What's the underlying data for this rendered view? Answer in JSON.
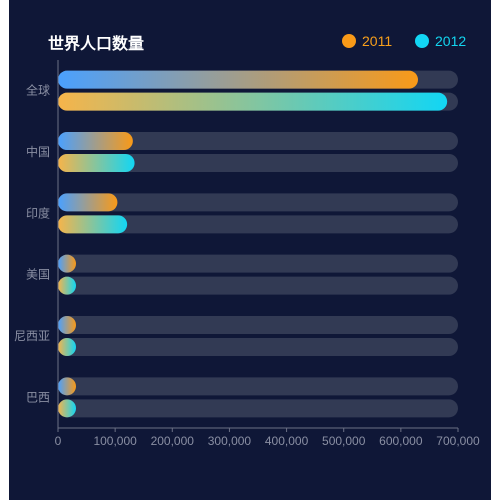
{
  "chart_data": {
    "type": "bar",
    "orientation": "horizontal",
    "title": "世界人口数量",
    "categories": [
      "全球",
      "中国",
      "印度",
      "美国",
      "尼西亚",
      "巴西"
    ],
    "series": [
      {
        "name": "2011",
        "values": [
          630000,
          131000,
          104000,
          29000,
          23000,
          18000
        ]
      },
      {
        "name": "2012",
        "values": [
          681000,
          134000,
          121000,
          31000,
          24000,
          19000
        ]
      }
    ],
    "xlim": [
      0,
      700000
    ],
    "xticks": [
      "0",
      "100,000",
      "200,000",
      "300,000",
      "400,000",
      "500,000",
      "600,000",
      "700,000"
    ],
    "grid": false,
    "legend_position": "top-right",
    "colors": {
      "series_2011_end": "#f99a18",
      "series_2012_end": "#12d6f4",
      "bar_start_2011": "#4aa0ff",
      "bar_start_2012": "#f6b44a",
      "track": "#323a54",
      "background": "#0f1737",
      "axis": "#6b7085"
    }
  }
}
